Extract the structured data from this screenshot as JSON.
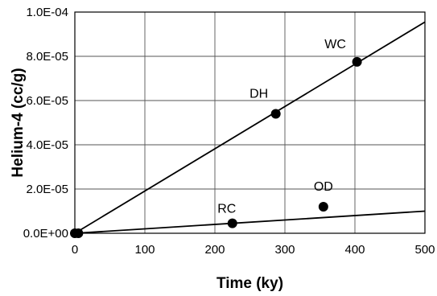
{
  "chart_data": {
    "type": "scatter",
    "xlabel": "Time (ky)",
    "ylabel": "Helium-4 (cc/g)",
    "xlim": [
      0,
      500
    ],
    "ylim": [
      0,
      0.0001
    ],
    "x_ticks": [
      0,
      100,
      200,
      300,
      400,
      500
    ],
    "x_tick_labels": [
      "0",
      "100",
      "200",
      "300",
      "400",
      "500"
    ],
    "y_ticks": [
      0,
      2e-05,
      4e-05,
      6e-05,
      8e-05,
      0.0001
    ],
    "y_tick_labels": [
      "0.0E+00",
      "2.0E-05",
      "4.0E-05",
      "6.0E-05",
      "8.0E-05",
      "1.0E-04"
    ],
    "grid": true,
    "points": [
      {
        "label": "",
        "x": 0,
        "y": 0
      },
      {
        "label": "",
        "x": 5,
        "y": 0
      },
      {
        "label": "RC",
        "x": 225,
        "y": 4.5e-06
      },
      {
        "label": "OD",
        "x": 355,
        "y": 1.2e-05
      },
      {
        "label": "DH",
        "x": 287,
        "y": 5.4e-05
      },
      {
        "label": "WC",
        "x": 403,
        "y": 7.75e-05
      }
    ],
    "lines": [
      {
        "x": [
          0,
          500
        ],
        "y": [
          0,
          9.55e-05
        ]
      },
      {
        "x": [
          0,
          500
        ],
        "y": [
          0,
          1e-05
        ]
      }
    ]
  }
}
